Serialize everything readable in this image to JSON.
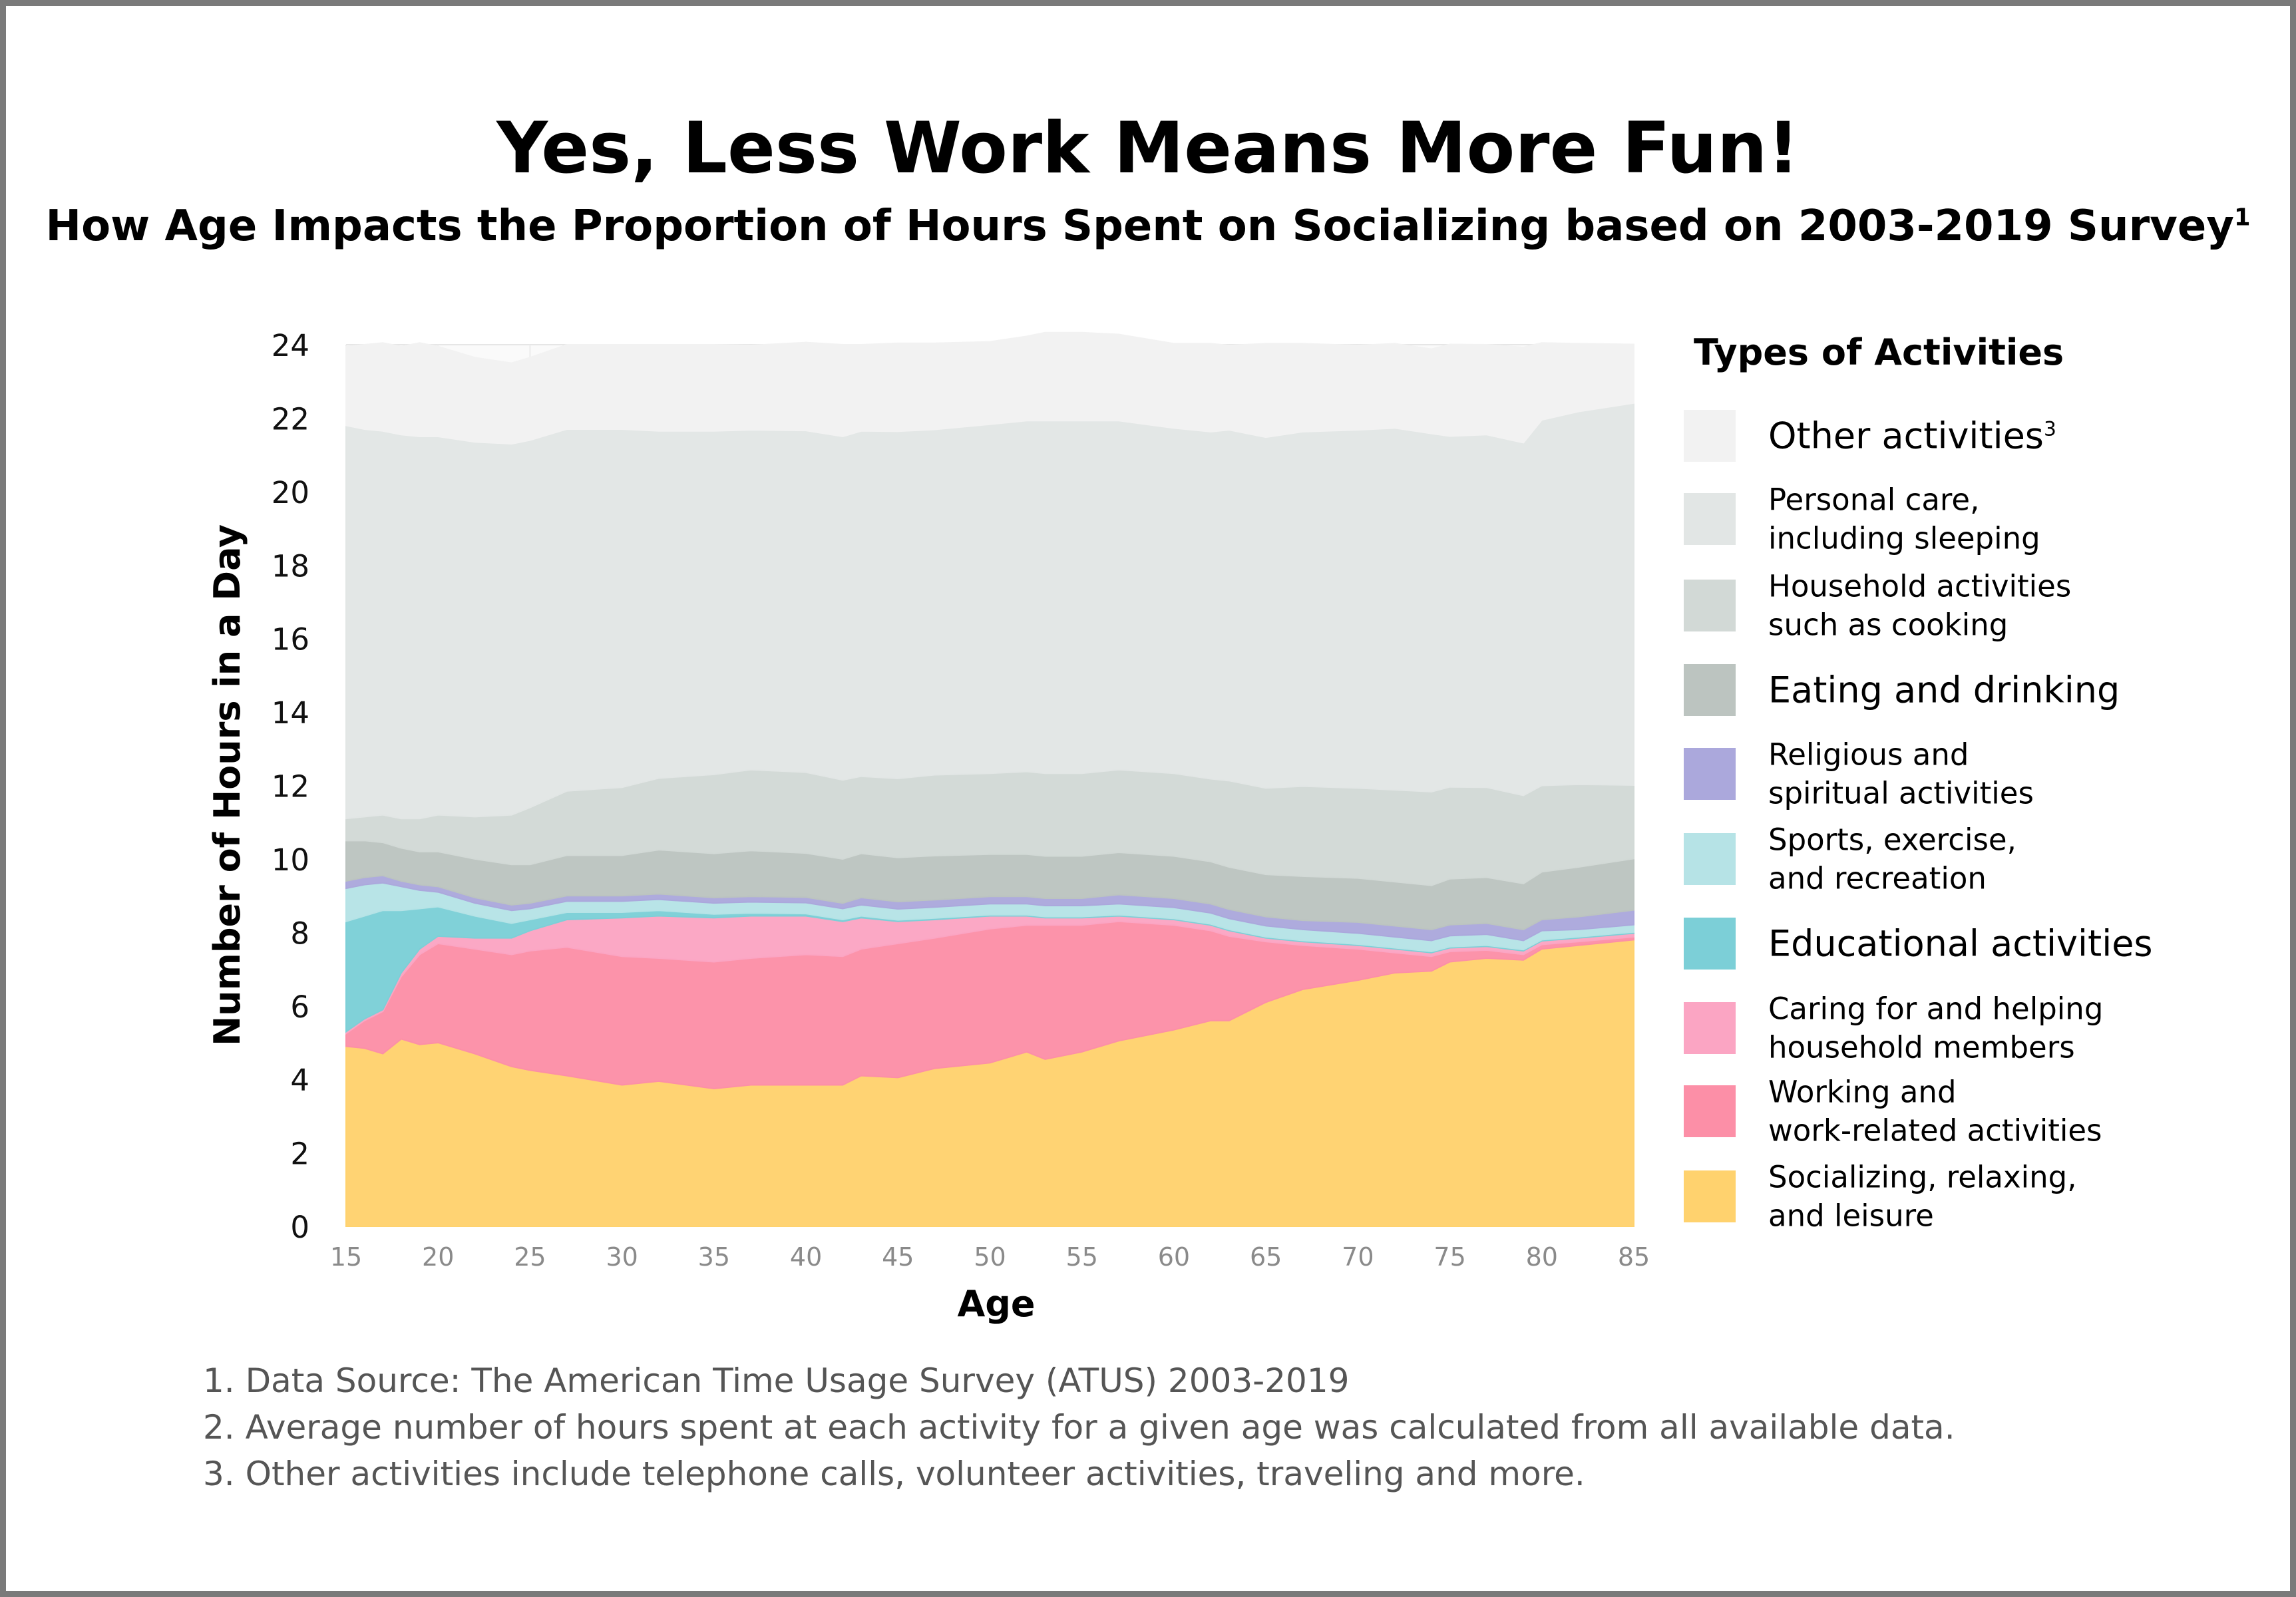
{
  "title": "Yes, Less Work Means More Fun!",
  "subtitle": "How Age Impacts the Proportion of Hours Spent on Socializing based on 2003-2019 Survey",
  "subtitle_sup": "1",
  "legend": {
    "title": "Types of Activities",
    "items": [
      {
        "label": "Other activities",
        "sup": "3",
        "color": "#f2f2f2"
      },
      {
        "label": "Personal care,\nincluding sleeping",
        "color": "#e2e6e5"
      },
      {
        "label": "Household activities\nsuch as cooking",
        "color": "#d2d9d6"
      },
      {
        "label": "Eating and drinking",
        "color": "#bcc4c0"
      },
      {
        "label": "Religious and\nspiritual activities",
        "color": "#aba8dc"
      },
      {
        "label": "Sports, exercise,\nand recreation",
        "color": "#b6e3e6"
      },
      {
        "label": "Educational activities",
        "color": "#7ccfd7"
      },
      {
        "label": "Caring for and helping\nhousehold members",
        "color": "#fba5c3"
      },
      {
        "label": "Working and\nwork-related activities",
        "color": "#fc8fa7"
      },
      {
        "label": "Socializing, relaxing,\nand leisure",
        "color": "#ffd26e"
      }
    ]
  },
  "notes": [
    "1. Data Source: The American Time Usage Survey (ATUS) 2003-2019",
    "2. Average number of hours spent at each activity for a given age was calculated from all available data.",
    "3. Other activities include telephone calls, volunteer activities, traveling and more."
  ],
  "chart_data": {
    "type": "area",
    "stacked": true,
    "xlabel": "Age",
    "ylabel": "Number of Hours in a Day",
    "xlim": [
      15,
      85
    ],
    "ylim": [
      0,
      24
    ],
    "xticks": [
      15,
      20,
      25,
      30,
      35,
      40,
      45,
      50,
      55,
      60,
      65,
      70,
      75,
      80,
      85
    ],
    "yticks": [
      0,
      2,
      4,
      6,
      8,
      10,
      12,
      14,
      16,
      18,
      20,
      22,
      24
    ],
    "grid": true,
    "legend_position": "right",
    "x": [
      15,
      16,
      17,
      18,
      19,
      20,
      22,
      24,
      25,
      27,
      30,
      32,
      35,
      37,
      40,
      42,
      43,
      45,
      47,
      50,
      52,
      53,
      55,
      57,
      60,
      62,
      63,
      65,
      67,
      70,
      72,
      74,
      75,
      77,
      79,
      80,
      82,
      85
    ],
    "series": [
      {
        "name": "Socializing, relaxing, and leisure",
        "color": "#ffd26e",
        "values": [
          4.9,
          4.85,
          4.7,
          5.1,
          4.95,
          5.0,
          4.7,
          4.35,
          4.25,
          4.1,
          3.85,
          3.95,
          3.75,
          3.85,
          3.85,
          3.85,
          4.1,
          4.05,
          4.3,
          4.45,
          4.75,
          4.55,
          4.75,
          5.05,
          5.35,
          5.6,
          5.6,
          6.1,
          6.45,
          6.7,
          6.9,
          6.95,
          7.2,
          7.3,
          7.25,
          7.55,
          7.65,
          7.8
        ]
      },
      {
        "name": "Working and work-related activities",
        "color": "#fc8fa7",
        "values": [
          0.35,
          0.75,
          1.15,
          1.7,
          2.45,
          2.7,
          2.85,
          3.05,
          3.25,
          3.5,
          3.5,
          3.35,
          3.45,
          3.45,
          3.55,
          3.5,
          3.45,
          3.65,
          3.55,
          3.65,
          3.45,
          3.65,
          3.45,
          3.25,
          2.85,
          2.45,
          2.3,
          1.65,
          1.2,
          0.85,
          0.55,
          0.4,
          0.28,
          0.22,
          0.15,
          0.12,
          0.1,
          0.08
        ]
      },
      {
        "name": "Caring for and helping household members",
        "color": "#fba5c3",
        "values": [
          0.05,
          0.05,
          0.05,
          0.1,
          0.15,
          0.2,
          0.3,
          0.45,
          0.55,
          0.75,
          1.05,
          1.15,
          1.2,
          1.15,
          1.05,
          0.95,
          0.85,
          0.6,
          0.5,
          0.35,
          0.25,
          0.2,
          0.2,
          0.15,
          0.15,
          0.15,
          0.15,
          0.1,
          0.1,
          0.1,
          0.1,
          0.1,
          0.1,
          0.1,
          0.1,
          0.1,
          0.1,
          0.1
        ]
      },
      {
        "name": "Educational activities",
        "color": "#7ccfd7",
        "values": [
          3.0,
          2.8,
          2.7,
          1.7,
          1.1,
          0.8,
          0.6,
          0.4,
          0.3,
          0.2,
          0.15,
          0.15,
          0.1,
          0.08,
          0.06,
          0.05,
          0.05,
          0.04,
          0.04,
          0.03,
          0.03,
          0.03,
          0.03,
          0.03,
          0.03,
          0.03,
          0.03,
          0.03,
          0.03,
          0.03,
          0.03,
          0.03,
          0.03,
          0.03,
          0.03,
          0.03,
          0.03,
          0.03
        ]
      },
      {
        "name": "Sports, exercise, and recreation",
        "color": "#b6e3e6",
        "values": [
          0.9,
          0.85,
          0.75,
          0.65,
          0.5,
          0.4,
          0.35,
          0.35,
          0.3,
          0.3,
          0.3,
          0.3,
          0.3,
          0.3,
          0.3,
          0.3,
          0.3,
          0.3,
          0.3,
          0.3,
          0.3,
          0.3,
          0.3,
          0.3,
          0.3,
          0.3,
          0.3,
          0.3,
          0.3,
          0.3,
          0.3,
          0.3,
          0.3,
          0.3,
          0.25,
          0.25,
          0.2,
          0.2
        ]
      },
      {
        "name": "Religious and spiritual activities",
        "color": "#aba8dc",
        "values": [
          0.2,
          0.2,
          0.2,
          0.15,
          0.15,
          0.15,
          0.15,
          0.15,
          0.15,
          0.15,
          0.15,
          0.15,
          0.15,
          0.15,
          0.15,
          0.15,
          0.2,
          0.2,
          0.2,
          0.2,
          0.2,
          0.2,
          0.2,
          0.25,
          0.25,
          0.25,
          0.25,
          0.25,
          0.25,
          0.3,
          0.3,
          0.3,
          0.3,
          0.3,
          0.3,
          0.3,
          0.35,
          0.4
        ]
      },
      {
        "name": "Eating and drinking",
        "color": "#bcc4c0",
        "values": [
          1.1,
          1.0,
          0.9,
          0.9,
          0.9,
          0.95,
          1.05,
          1.1,
          1.05,
          1.1,
          1.1,
          1.2,
          1.2,
          1.25,
          1.2,
          1.2,
          1.2,
          1.2,
          1.2,
          1.15,
          1.15,
          1.15,
          1.15,
          1.15,
          1.15,
          1.15,
          1.15,
          1.15,
          1.2,
          1.2,
          1.2,
          1.2,
          1.25,
          1.25,
          1.25,
          1.3,
          1.35,
          1.4
        ]
      },
      {
        "name": "Household activities such as cooking",
        "color": "#d2d9d6",
        "values": [
          0.6,
          0.65,
          0.75,
          0.8,
          0.9,
          1.0,
          1.15,
          1.35,
          1.55,
          1.75,
          1.85,
          1.95,
          2.15,
          2.2,
          2.2,
          2.15,
          2.1,
          2.15,
          2.2,
          2.2,
          2.25,
          2.25,
          2.25,
          2.25,
          2.25,
          2.25,
          2.35,
          2.35,
          2.45,
          2.45,
          2.5,
          2.55,
          2.5,
          2.45,
          2.4,
          2.35,
          2.25,
          2.0
        ]
      },
      {
        "name": "Personal care, including sleeping",
        "color": "#e2e6e5",
        "values": [
          10.7,
          10.55,
          10.45,
          10.45,
          10.4,
          10.3,
          10.2,
          10.1,
          10.0,
          9.85,
          9.75,
          9.45,
          9.35,
          9.25,
          9.3,
          9.35,
          9.4,
          9.45,
          9.4,
          9.5,
          9.55,
          9.6,
          9.6,
          9.5,
          9.4,
          9.45,
          9.55,
          9.55,
          9.65,
          9.75,
          9.85,
          9.75,
          9.55,
          9.6,
          9.6,
          9.95,
          10.15,
          10.4
        ]
      },
      {
        "name": "Other activities",
        "color": "#f2f2f2",
        "values": [
          2.15,
          2.3,
          2.4,
          2.4,
          2.55,
          2.45,
          2.3,
          2.2,
          2.25,
          2.3,
          2.3,
          2.35,
          2.35,
          2.3,
          2.4,
          2.5,
          2.35,
          2.4,
          2.35,
          2.25,
          2.3,
          2.4,
          2.4,
          2.35,
          2.3,
          2.4,
          2.3,
          2.55,
          2.4,
          2.3,
          2.3,
          2.3,
          2.5,
          2.45,
          2.6,
          2.1,
          1.85,
          1.6
        ]
      }
    ]
  }
}
